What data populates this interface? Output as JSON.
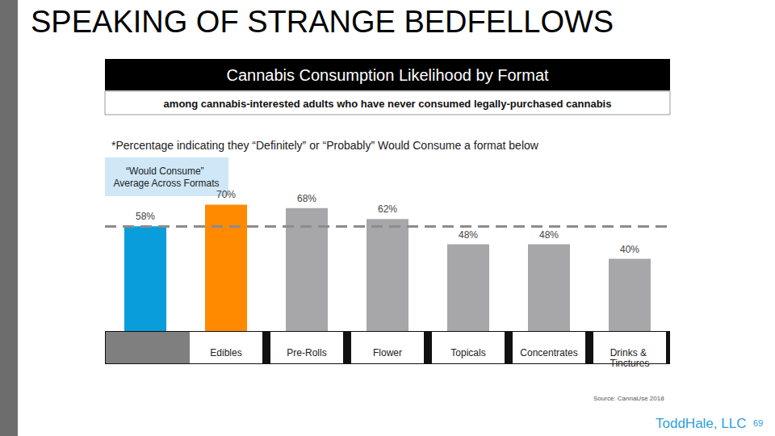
{
  "chart_data": {
    "type": "bar",
    "title": "SPEAKING OF STRANGE BEDFELLOWS",
    "subtitle": "Cannabis Consumption Likelihood by Format",
    "description": "among cannabis-interested adults who have never consumed legally-purchased cannabis",
    "note": "*Percentage indicating they “Definitely” or “Probably” Would Consume a format below",
    "average_label": "“Would Consume” Average Across Formats",
    "average_line": 58,
    "source": "Source: CannaUse 2018",
    "footer": "ToddHale, LLC",
    "page": "69",
    "categories": [
      null,
      "Edibles",
      "Pre-Rolls",
      "Flower",
      "Topicals",
      "Concentrates",
      "Drinks & Tinctures"
    ],
    "values": [
      58,
      70,
      68,
      62,
      48,
      48,
      40
    ],
    "value_labels": [
      "58%",
      "70%",
      "68%",
      "62%",
      "48%",
      "48%",
      "40%"
    ],
    "colors": [
      "#0a9ddb",
      "#ff8a00",
      "#a7a7a9",
      "#a7a7a9",
      "#a7a7a9",
      "#a7a7a9",
      "#a7a7a9"
    ],
    "ylim": [
      0,
      80
    ],
    "yticks": [
      0,
      80
    ],
    "grid": false,
    "data_labels": true,
    "tick_labels": "x"
  }
}
